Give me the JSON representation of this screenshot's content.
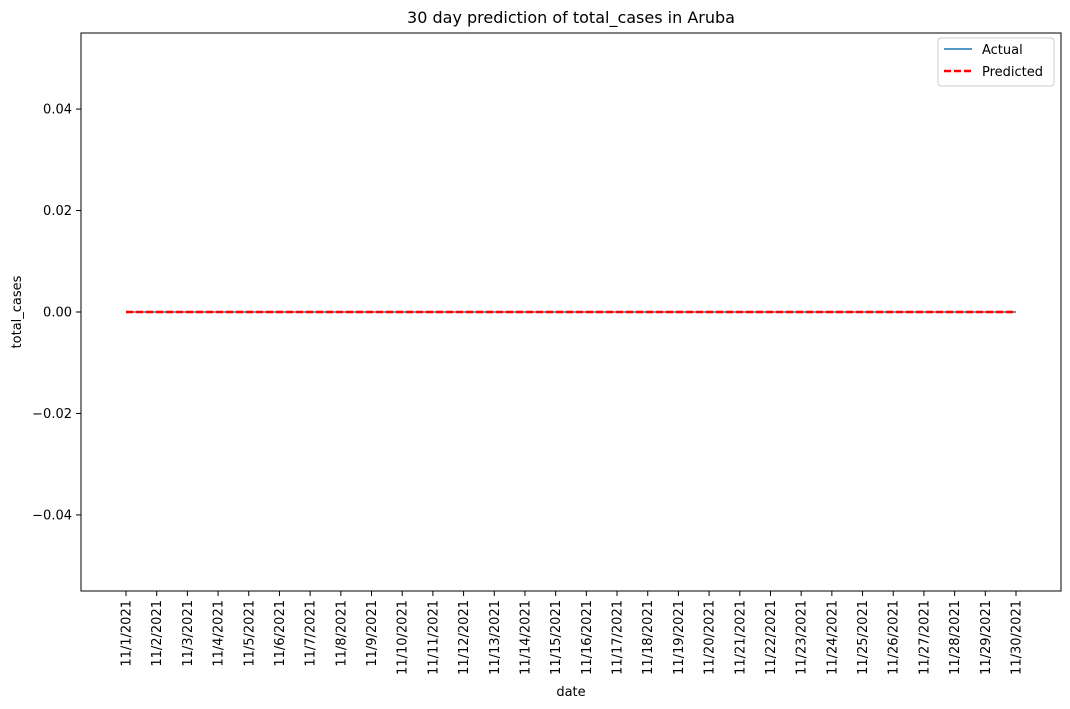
{
  "chart_data": {
    "type": "line",
    "title": "30 day prediction of total_cases in Aruba",
    "xlabel": "date",
    "ylabel": "total_cases",
    "x": [
      "11/1/2021",
      "11/2/2021",
      "11/3/2021",
      "11/4/2021",
      "11/5/2021",
      "11/6/2021",
      "11/7/2021",
      "11/8/2021",
      "11/9/2021",
      "11/10/2021",
      "11/11/2021",
      "11/12/2021",
      "11/13/2021",
      "11/14/2021",
      "11/15/2021",
      "11/16/2021",
      "11/17/2021",
      "11/18/2021",
      "11/19/2021",
      "11/20/2021",
      "11/21/2021",
      "11/22/2021",
      "11/23/2021",
      "11/24/2021",
      "11/25/2021",
      "11/26/2021",
      "11/27/2021",
      "11/28/2021",
      "11/29/2021",
      "11/30/2021"
    ],
    "ylim": [
      -0.055,
      0.055
    ],
    "yticks": [
      0.04,
      0.02,
      0.0,
      -0.02,
      -0.04
    ],
    "ytick_labels": [
      "0.04",
      "0.02",
      "0.00",
      "−0.02",
      "−0.04"
    ],
    "series": [
      {
        "name": "Actual",
        "color": "#1f77b4",
        "style": "solid",
        "values": [
          0,
          0,
          0,
          0,
          0,
          0,
          0,
          0,
          0,
          0,
          0,
          0,
          0,
          0,
          0,
          0,
          0,
          0,
          0,
          0,
          0,
          0,
          0,
          0,
          0,
          0,
          0,
          0,
          0,
          0
        ]
      },
      {
        "name": "Predicted",
        "color": "#ff0000",
        "style": "dashed",
        "values": [
          0,
          0,
          0,
          0,
          0,
          0,
          0,
          0,
          0,
          0,
          0,
          0,
          0,
          0,
          0,
          0,
          0,
          0,
          0,
          0,
          0,
          0,
          0,
          0,
          0,
          0,
          0,
          0,
          0,
          0
        ]
      }
    ],
    "legend": "top-right",
    "grid": false
  }
}
